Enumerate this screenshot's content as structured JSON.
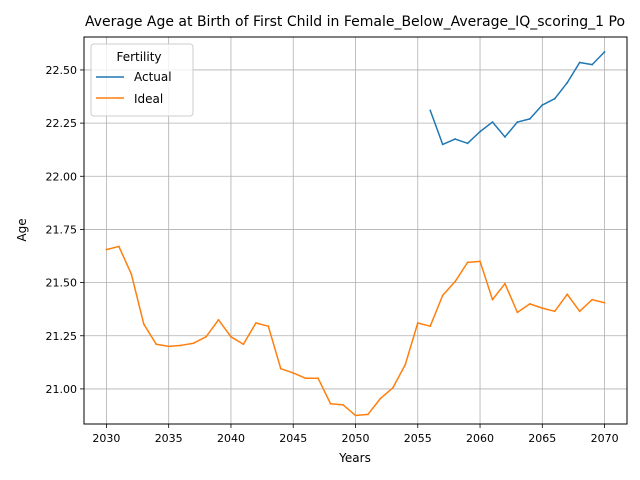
{
  "chart_data": {
    "type": "line",
    "title": "Average Age at Birth of First Child in Female_Below_Average_IQ_scoring_1 Po",
    "xlabel": "Years",
    "ylabel": "Age",
    "xlim": [
      2028.2,
      2071.8
    ],
    "ylim": [
      20.835,
      22.655
    ],
    "xticks": [
      2030,
      2035,
      2040,
      2045,
      2050,
      2055,
      2060,
      2065,
      2070
    ],
    "yticks": [
      21.0,
      21.25,
      21.5,
      21.75,
      22.0,
      22.25,
      22.5
    ],
    "ytick_labels": [
      "21.00",
      "21.25",
      "21.50",
      "21.75",
      "22.00",
      "22.25",
      "22.50"
    ],
    "grid": true,
    "legend": {
      "title": "Fertility",
      "placement": "top-left"
    },
    "series": [
      {
        "name": "Actual",
        "color": "#1f77b4",
        "x": [
          2056,
          2057,
          2058,
          2059,
          2060,
          2061,
          2062,
          2063,
          2064,
          2065,
          2066,
          2067,
          2068,
          2069,
          2070
        ],
        "y": [
          22.31,
          22.15,
          22.175,
          22.155,
          22.21,
          22.255,
          22.185,
          22.255,
          22.27,
          22.335,
          22.365,
          22.44,
          22.535,
          22.525,
          22.585
        ]
      },
      {
        "name": "Ideal",
        "color": "#ff7f0e",
        "x": [
          2030,
          2031,
          2032,
          2033,
          2034,
          2035,
          2036,
          2037,
          2038,
          2039,
          2040,
          2041,
          2042,
          2043,
          2044,
          2045,
          2046,
          2047,
          2048,
          2049,
          2050,
          2051,
          2052,
          2053,
          2054,
          2055,
          2056,
          2057,
          2058,
          2059,
          2060,
          2061,
          2062,
          2063,
          2064,
          2065,
          2066,
          2067,
          2068,
          2069,
          2070
        ],
        "y": [
          21.655,
          21.67,
          21.54,
          21.305,
          21.21,
          21.2,
          21.205,
          21.215,
          21.245,
          21.325,
          21.245,
          21.21,
          21.31,
          21.295,
          21.095,
          21.075,
          21.05,
          21.05,
          20.93,
          20.925,
          20.875,
          20.88,
          20.955,
          21.005,
          21.115,
          21.31,
          21.295,
          21.44,
          21.505,
          21.595,
          21.6,
          21.42,
          21.495,
          21.36,
          21.4,
          21.38,
          21.365,
          21.445,
          21.365,
          21.42,
          21.405
        ]
      }
    ]
  }
}
